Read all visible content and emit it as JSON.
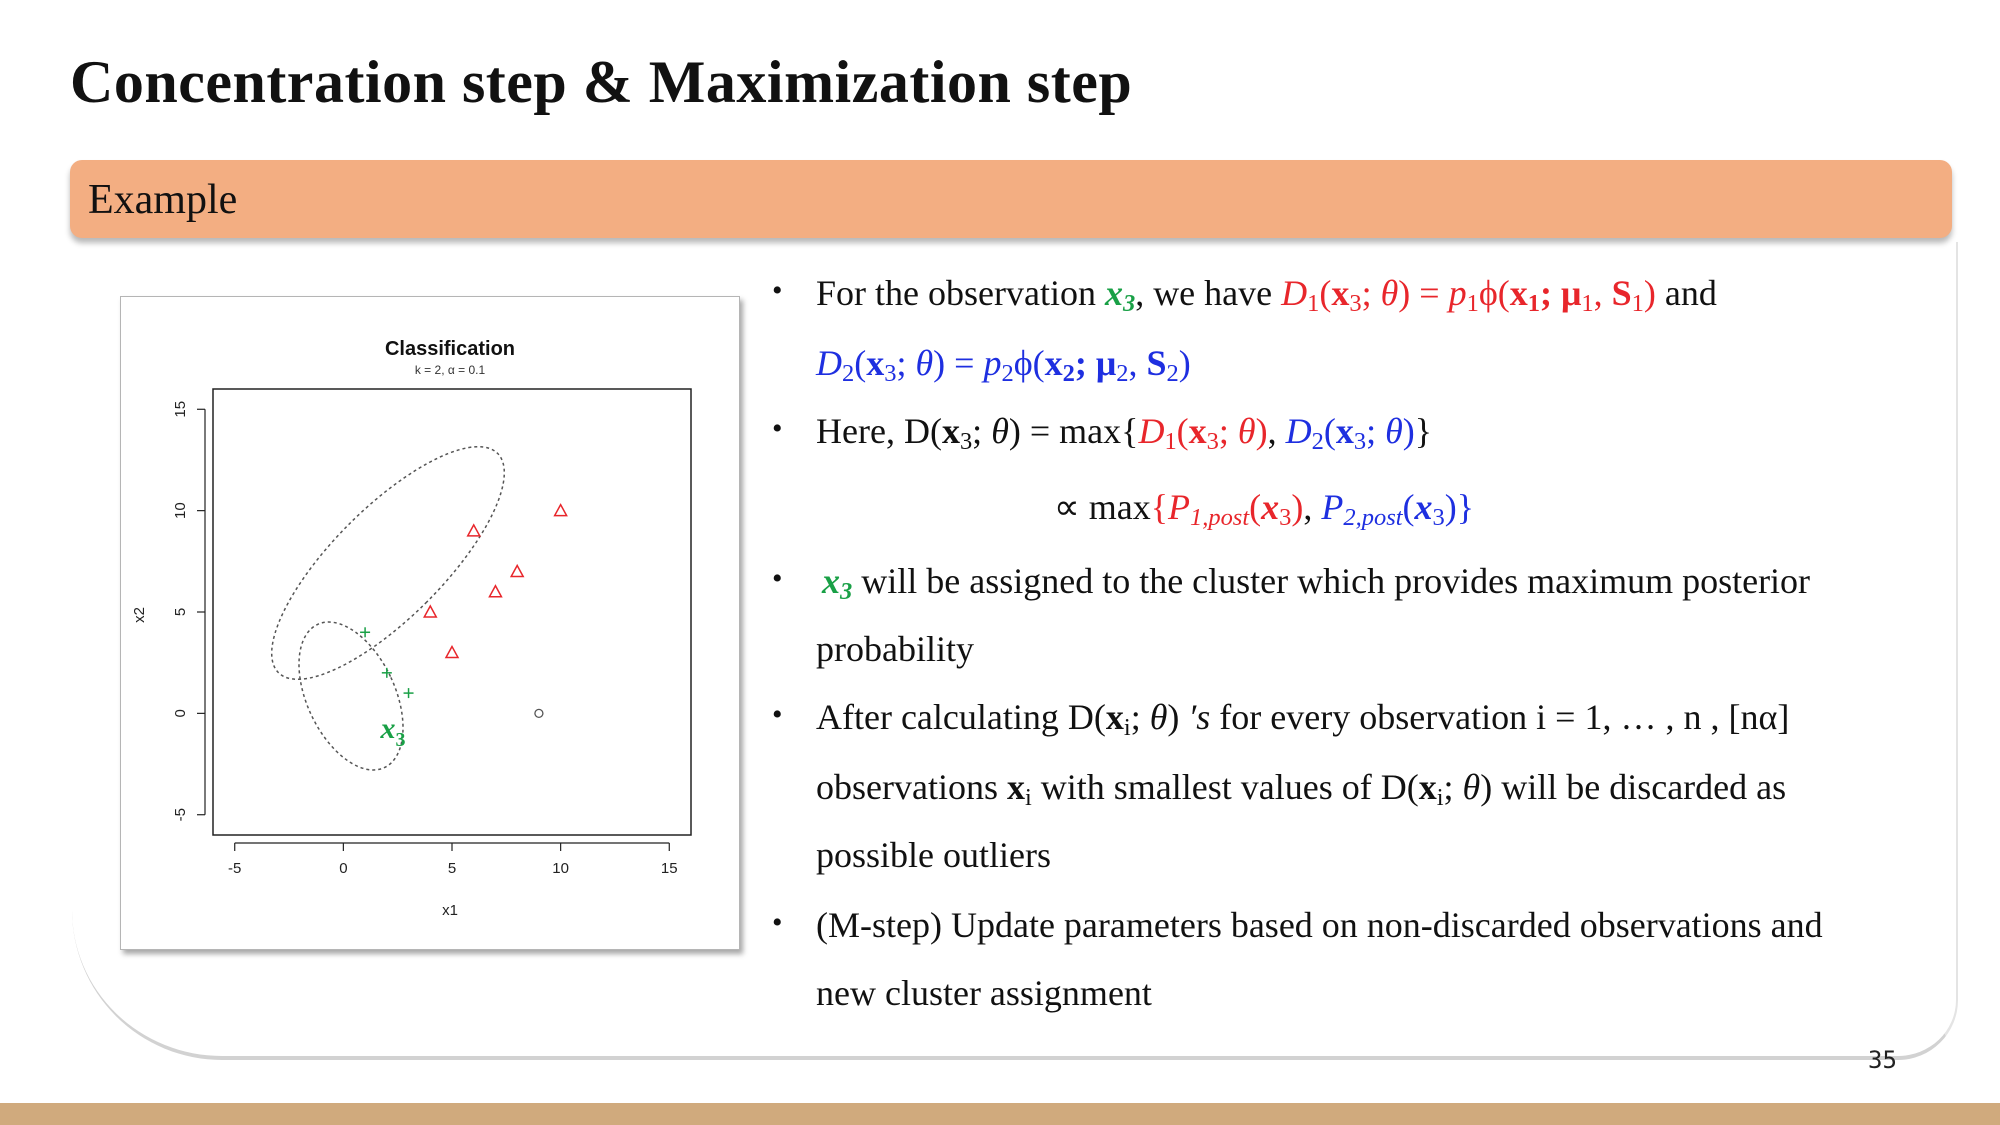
{
  "slide": {
    "title": "Concentration step & Maximization step",
    "section_label": "Example",
    "page_number": "35"
  },
  "plot": {
    "title": "Classification",
    "subtitle": "k = 2, α = 0.1",
    "x_label": "x1",
    "y_label": "x2",
    "annotation": "x",
    "annotation_sub": "3",
    "chart_data": {
      "type": "scatter",
      "title": "Classification",
      "subtitle": "k = 2, α = 0.1",
      "xlabel": "x1",
      "ylabel": "x2",
      "xlim": [
        -6,
        16
      ],
      "ylim": [
        -6,
        16
      ],
      "x_ticks": [
        "-5",
        "0",
        "5",
        "10",
        "15"
      ],
      "y_ticks": [
        "-5",
        "0",
        "5",
        "10",
        "15"
      ],
      "grid": false,
      "series": [
        {
          "marker": "plus",
          "color": "#19a046",
          "points": [
            [
              1,
              4
            ],
            [
              2,
              2
            ],
            [
              3,
              1
            ]
          ]
        },
        {
          "marker": "triangle",
          "color": "#e8262b",
          "points": [
            [
              4,
              5
            ],
            [
              5,
              3
            ],
            [
              6,
              9
            ],
            [
              7,
              6
            ],
            [
              8,
              7
            ],
            [
              10,
              10
            ]
          ]
        },
        {
          "marker": "circle",
          "color": "#555555",
          "points": [
            [
              9,
              0
            ]
          ]
        }
      ]
    }
  },
  "b1": {
    "t1": "For the observation ",
    "x": "x",
    "xs": "3",
    "t2": ", we have ",
    "d1": "D",
    "d1s": "1",
    "p1": "(",
    "bx": "x",
    "bxs": "3",
    "semi": "; ",
    "th": "θ",
    "p2": ") = ",
    "pp": "p",
    "pps": "1",
    "phi": "ϕ(",
    "bx1": "x",
    "bx1s": "1",
    "mu": "; μ",
    "mus": "1",
    "comma": ", ",
    "S": "S",
    "Ss": "1",
    "close": ")",
    "and": " and"
  },
  "b1b": {
    "d2": "D",
    "d2s": "2",
    "p1": "(",
    "bx": "x",
    "bxs": "3",
    "semi": "; ",
    "th": "θ",
    "p2": ") = ",
    "pp": "p",
    "pps": "2",
    "phi": "ϕ(",
    "bx2": "x",
    "bx2s": "2",
    "mu": "; μ",
    "mus": "2",
    "comma": ", ",
    "S": "S",
    "Ss": "2",
    "close": ")"
  },
  "b2": {
    "t1": "Here, D(",
    "bx": "x",
    "bxs": "3",
    "semi": "; ",
    "th": "θ",
    "t2": ") = max{",
    "d1": "D",
    "d1s": "1",
    "r1": "(",
    "rbx": "x",
    "rbxs": "3",
    "rsemi": "; ",
    "rth": "θ",
    "r2": ")",
    "comma": ", ",
    "d2": "D",
    "d2s": "2",
    "u1": "(",
    "ubx": "x",
    "ubxs": "3",
    "usemi": "; ",
    "uth": "θ",
    "u2": ")",
    "t3": "}"
  },
  "b2b": {
    "prop": "∝ max",
    "br1": "{",
    "P1": "P",
    "P1s": "1,post",
    "a1": "(",
    "ax": "x",
    "axs": "3",
    "a2": ")",
    "comma": ", ",
    "P2": "P",
    "P2s": "2,post",
    "c1": "(",
    "cx": "x",
    "cxs": "3",
    "c2": ")",
    "br2": "}"
  },
  "b3": {
    "x": "x",
    "xs": "3",
    "t1": " will be assigned to the cluster which provides maximum posterior",
    "t2": "probability"
  },
  "b4": {
    "t1": "After calculating D(",
    "bx": "x",
    "bxs": "i",
    "semi": "; ",
    "th": "θ",
    "t2": ") ",
    "s": "′s",
    "t3": " for every observation i = 1, … , n , [nα]",
    "l2a": "observations ",
    "l2x": "x",
    "l2xs": "i",
    "l2b": " with smallest values of D(",
    "l2bx": "x",
    "l2bxs": "i",
    "l2semi": "; ",
    "l2th": "θ",
    "l2c": ") will be discarded as",
    "l3": "possible outliers"
  },
  "b5": {
    "t1": "(M-step) Update parameters based on non-discarded observations and",
    "t2": "new cluster assignment"
  },
  "bullet_symbol": "•"
}
